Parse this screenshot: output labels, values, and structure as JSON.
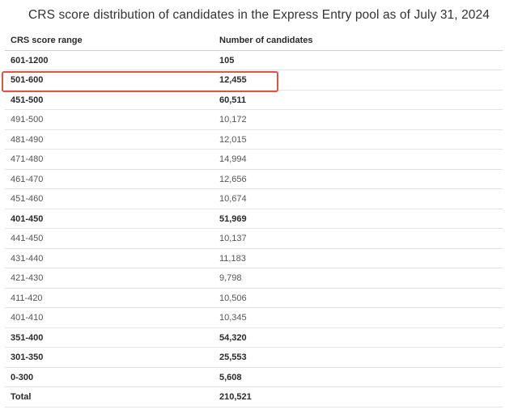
{
  "caption": "CRS score distribution of candidates in the Express Entry pool as of July 31, 2024",
  "header": {
    "col1": "CRS score range",
    "col2": "Number of candidates"
  },
  "highlight_color": "#e0524a",
  "rows": [
    {
      "range": "601-1200",
      "count": "105"
    },
    {
      "range": "501-600",
      "count": "12,455"
    },
    {
      "range": "451-500",
      "count": "60,511"
    },
    {
      "range": "491-500",
      "count": "10,172"
    },
    {
      "range": "481-490",
      "count": "12,015"
    },
    {
      "range": "471-480",
      "count": "14,994"
    },
    {
      "range": "461-470",
      "count": "12,656"
    },
    {
      "range": "451-460",
      "count": "10,674"
    },
    {
      "range": "401-450",
      "count": "51,969"
    },
    {
      "range": "441-450",
      "count": "10,137"
    },
    {
      "range": "431-440",
      "count": "11,183"
    },
    {
      "range": "421-430",
      "count": "9,798"
    },
    {
      "range": "411-420",
      "count": "10,506"
    },
    {
      "range": "401-410",
      "count": "10,345"
    },
    {
      "range": "351-400",
      "count": "54,320"
    },
    {
      "range": "301-350",
      "count": "25,553"
    },
    {
      "range": "0-300",
      "count": "5,608"
    },
    {
      "range": "Total",
      "count": "210,521"
    }
  ]
}
